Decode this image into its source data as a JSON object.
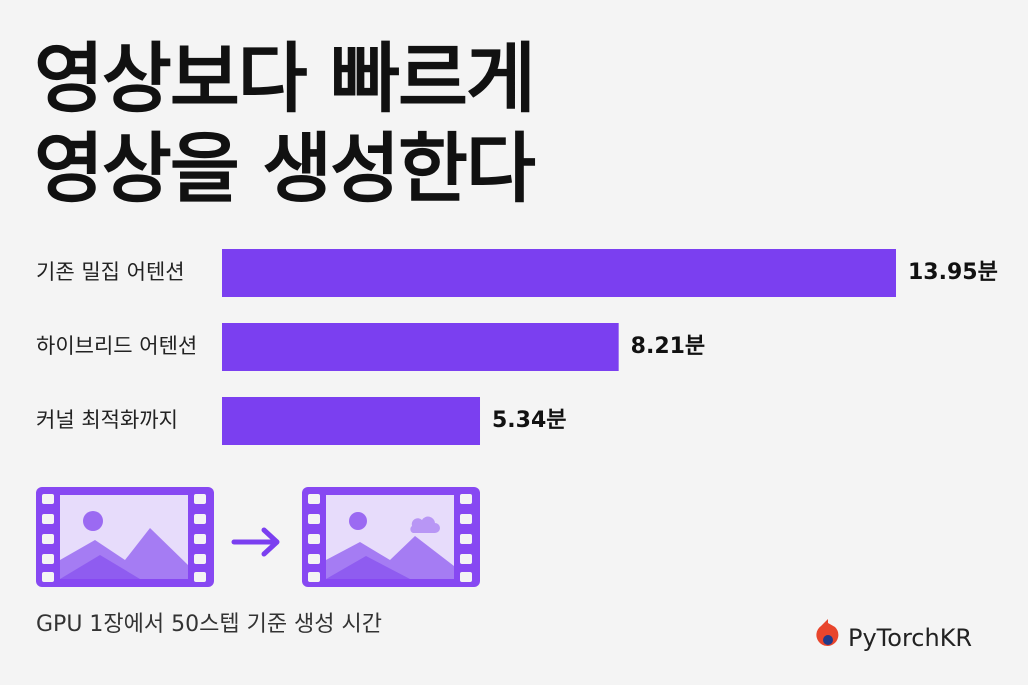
{
  "chart_data": {
    "type": "bar",
    "orientation": "horizontal",
    "title": [
      "영상보다 빠르게",
      "영상을 생성한다"
    ],
    "categories": [
      "기존 밀집 어텐션",
      "하이브리드 어텐션",
      "커널 최적화까지"
    ],
    "values": [
      13.95,
      8.21,
      5.34
    ],
    "value_labels": [
      "13.95분",
      "8.21분",
      "5.34분"
    ],
    "color": "#7b3ff0",
    "note": "GPU 1장에서 50스텝 기준 생성 시간",
    "brand": "PyTorchKR"
  }
}
